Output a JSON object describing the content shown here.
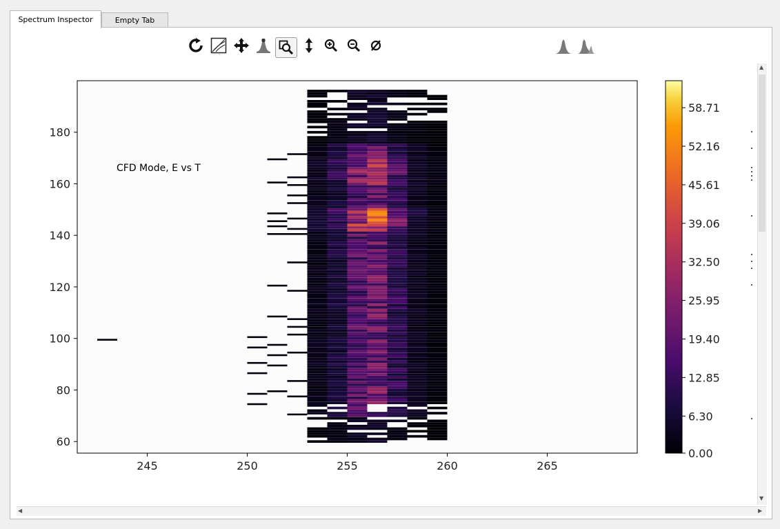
{
  "tabs": [
    {
      "label": "Spectrum Inspector",
      "active": true
    },
    {
      "label": "Empty Tab",
      "active": false
    }
  ],
  "toolbar": {
    "buttons": [
      {
        "icon": "reset-icon",
        "name": "reset-view-button"
      },
      {
        "icon": "log-scale-icon",
        "name": "log-scale-button"
      },
      {
        "icon": "pan-icon",
        "name": "pan-button"
      },
      {
        "icon": "peak-icon",
        "name": "peak-button"
      },
      {
        "icon": "zoom-rect-icon",
        "name": "zoom-rect-button",
        "checked": true
      },
      {
        "icon": "vertical-arrows-icon",
        "name": "y-range-button"
      },
      {
        "icon": "zoom-in-icon",
        "name": "zoom-in-button"
      },
      {
        "icon": "zoom-out-icon",
        "name": "zoom-out-button"
      },
      {
        "icon": "clear-icon",
        "name": "clear-button"
      },
      {
        "icon": "gaussian-fit-icon",
        "name": "gaussian-fit-button"
      },
      {
        "icon": "skewed-fit-icon",
        "name": "skewed-fit-button"
      }
    ]
  },
  "chart_data": {
    "type": "heatmap",
    "annotation": "CFD Mode, E vs T",
    "xlim": [
      241.5,
      269.5
    ],
    "ylim": [
      55.5,
      200
    ],
    "x_ticks": [
      "245",
      "250",
      "255",
      "260",
      "265"
    ],
    "y_ticks": [
      "60",
      "80",
      "100",
      "120",
      "140",
      "160",
      "180"
    ],
    "colormap": "inferno",
    "colorbar": {
      "min": 0,
      "max": 63.3,
      "tick_labels": [
        "0.00",
        "6.30",
        "12.85",
        "19.40",
        "25.95",
        "32.50",
        "39.06",
        "45.61",
        "52.16",
        "58.71"
      ]
    },
    "cells": [
      {
        "x": 243,
        "y": 99.5,
        "v": 1
      },
      {
        "x": 250.5,
        "y": 100.5,
        "v": 1
      },
      {
        "x": 250.5,
        "y": 96.5,
        "v": 1
      },
      {
        "x": 250.5,
        "y": 90.5,
        "v": 1
      },
      {
        "x": 250.5,
        "y": 86.5,
        "v": 2
      },
      {
        "x": 250.5,
        "y": 78.5,
        "v": 1
      },
      {
        "x": 250.5,
        "y": 74.5,
        "v": 1
      },
      {
        "x": 251.5,
        "y": 169.5,
        "v": 1
      },
      {
        "x": 251.5,
        "y": 160.5,
        "v": 1
      },
      {
        "x": 251.5,
        "y": 148.5,
        "v": 1
      },
      {
        "x": 251.5,
        "y": 145.5,
        "v": 1
      },
      {
        "x": 251.5,
        "y": 143.5,
        "v": 1
      },
      {
        "x": 251.5,
        "y": 140.5,
        "v": 1
      },
      {
        "x": 251.5,
        "y": 120.5,
        "v": 1
      },
      {
        "x": 251.5,
        "y": 108.5,
        "v": 1
      },
      {
        "x": 251.5,
        "y": 97.5,
        "v": 1
      },
      {
        "x": 251.5,
        "y": 93.5,
        "v": 1
      },
      {
        "x": 251.5,
        "y": 89.5,
        "v": 1
      },
      {
        "x": 251.5,
        "y": 79.5,
        "v": 1
      },
      {
        "x": 252.5,
        "y": 171.5,
        "v": 1
      },
      {
        "x": 252.5,
        "y": 162.5,
        "v": 2
      },
      {
        "x": 252.5,
        "y": 159.5,
        "v": 1
      },
      {
        "x": 252.5,
        "y": 155.5,
        "v": 1
      },
      {
        "x": 252.5,
        "y": 152.5,
        "v": 1
      },
      {
        "x": 252.5,
        "y": 146.5,
        "v": 1
      },
      {
        "x": 252.5,
        "y": 142.5,
        "v": 2
      },
      {
        "x": 252.5,
        "y": 140.5,
        "v": 1
      },
      {
        "x": 252.5,
        "y": 129.5,
        "v": 1
      },
      {
        "x": 252.5,
        "y": 118.5,
        "v": 1
      },
      {
        "x": 252.5,
        "y": 107.5,
        "v": 2
      },
      {
        "x": 252.5,
        "y": 104.5,
        "v": 2
      },
      {
        "x": 252.5,
        "y": 101.5,
        "v": 1
      },
      {
        "x": 252.5,
        "y": 94.5,
        "v": 1
      },
      {
        "x": 252.5,
        "y": 83.5,
        "v": 1
      },
      {
        "x": 252.5,
        "y": 77.5,
        "v": 1
      },
      {
        "x": 252.5,
        "y": 70.5,
        "v": 1
      },
      {
        "x": 256.5,
        "y": 146,
        "v": 62
      },
      {
        "x": 256.5,
        "y": 164,
        "v": 48
      },
      {
        "x": 255.5,
        "y": 146,
        "v": 42
      },
      {
        "x": 255.5,
        "y": 166,
        "v": 30
      }
    ]
  }
}
